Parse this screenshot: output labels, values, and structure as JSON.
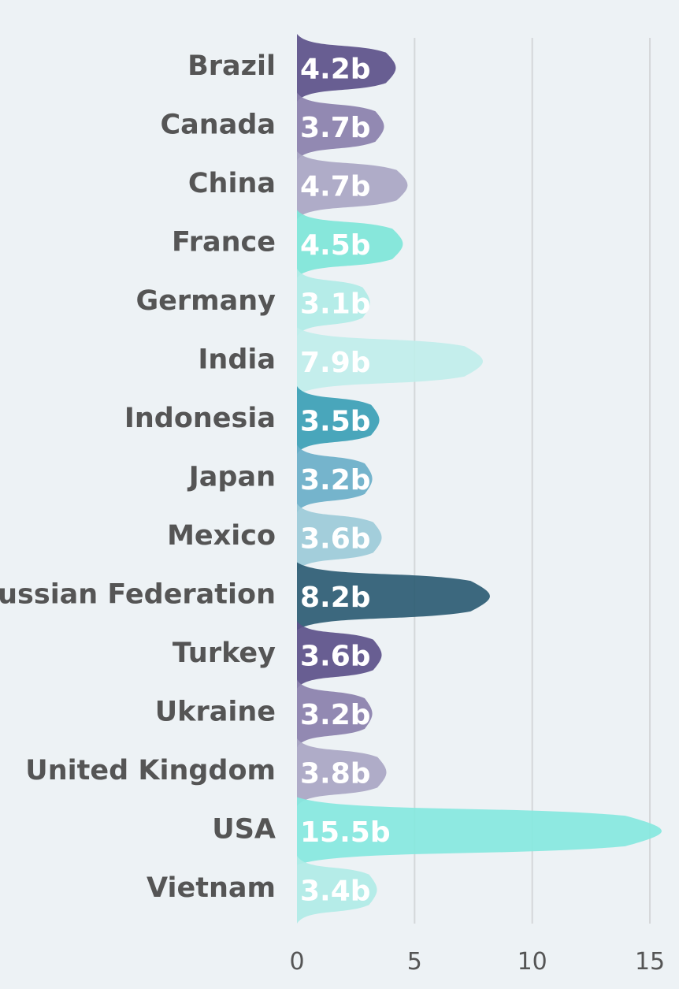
{
  "chart_data": {
    "type": "bar",
    "title": "",
    "xlabel": "",
    "ylabel": "",
    "orientation": "horizontal",
    "bar_shape": "teardrop",
    "categories": [
      "Brazil",
      "Canada",
      "China",
      "France",
      "Germany",
      "India",
      "Indonesia",
      "Japan",
      "Mexico",
      "Russian Federation",
      "Turkey",
      "Ukraine",
      "United Kingdom",
      "USA",
      "Vietnam"
    ],
    "values": [
      4.2,
      3.7,
      4.7,
      4.5,
      3.1,
      7.9,
      3.5,
      3.2,
      3.6,
      8.2,
      3.6,
      3.2,
      3.8,
      15.5,
      3.4
    ],
    "value_labels": [
      "4.2b",
      "3.7b",
      "4.7b",
      "4.5b",
      "3.1b",
      "7.9b",
      "3.5b",
      "3.2b",
      "3.6b",
      "8.2b",
      "3.6b",
      "3.2b",
      "3.8b",
      "15.5b",
      "3.4b"
    ],
    "colors": [
      "#5c5189",
      "#8a80ab",
      "#a9a6c3",
      "#7ee6d8",
      "#b0ece6",
      "#c0eeea",
      "#3b9fb5",
      "#6aafc8",
      "#9ccbd8",
      "#2d5c73",
      "#5c5189",
      "#8a80ab",
      "#a9a6c3",
      "#86e8de",
      "#b0ece6"
    ],
    "xlim": [
      0,
      15.5
    ],
    "xticks": [
      0,
      5,
      10,
      15
    ],
    "xtick_labels": [
      "0",
      "5",
      "10",
      "15"
    ],
    "grid": true,
    "legend": "none"
  }
}
